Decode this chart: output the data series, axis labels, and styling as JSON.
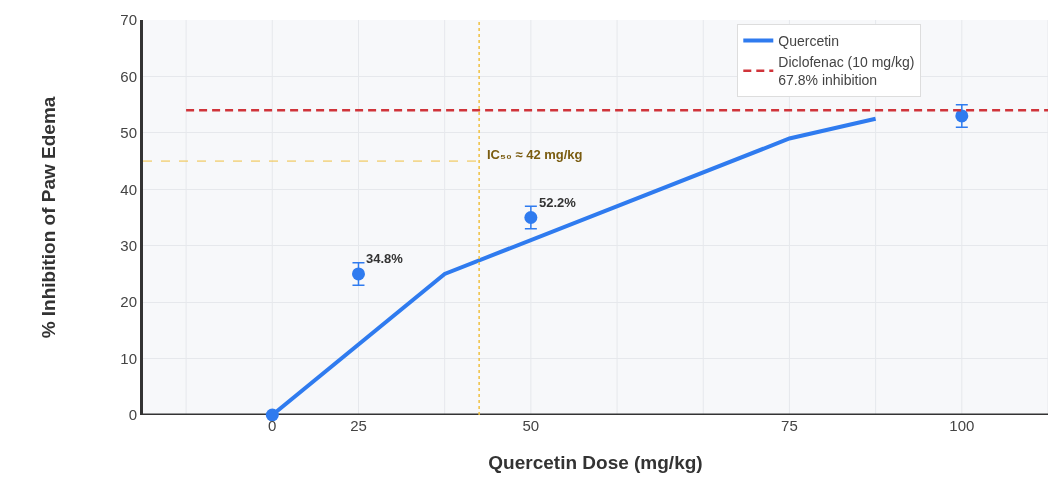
{
  "chart_data": {
    "type": "line",
    "xlabel": "Quercetin Dose (mg/kg)",
    "ylabel": "% Inhibition of Paw Edema",
    "categories": [
      null,
      "0",
      "25",
      null,
      "50",
      null,
      null,
      "75",
      null,
      "100",
      null
    ],
    "ylim": [
      0,
      70
    ],
    "yticks": [
      0,
      10,
      20,
      30,
      40,
      50,
      60,
      70
    ],
    "grid": true,
    "legend": "top right",
    "series": [
      {
        "name": "Quercetin",
        "color": "#2f7bef",
        "line_style": "solid",
        "values": [
          null,
          0,
          null,
          25,
          null,
          null,
          null,
          49,
          52.5,
          null,
          null
        ]
      },
      {
        "type": "scatter",
        "color": "#2f7bef",
        "marker": "circle",
        "values": [
          null,
          0,
          25,
          null,
          35,
          null,
          null,
          null,
          null,
          53,
          null
        ],
        "errors": [
          null,
          null,
          2,
          null,
          2,
          null,
          null,
          null,
          null,
          2,
          null
        ]
      },
      {
        "name": "Diclofenac (10 mg/kg)\n67.8% inhibition",
        "color": "#d0343a",
        "line_style": "dashed",
        "values": [
          54,
          54,
          54,
          54,
          54,
          54,
          54,
          54,
          54,
          54,
          54
        ]
      }
    ],
    "annotations": [
      {
        "text": "34.8%",
        "x": "25",
        "y": 25
      },
      {
        "text": "52.2%",
        "x": "50",
        "y": 35
      },
      "IC₅₀ ≈ 42 mg/kg"
    ],
    "ref_lines": [
      {
        "axis": "y",
        "value": 45,
        "color": "#f0c040",
        "line_style": "dashed"
      }
    ]
  }
}
